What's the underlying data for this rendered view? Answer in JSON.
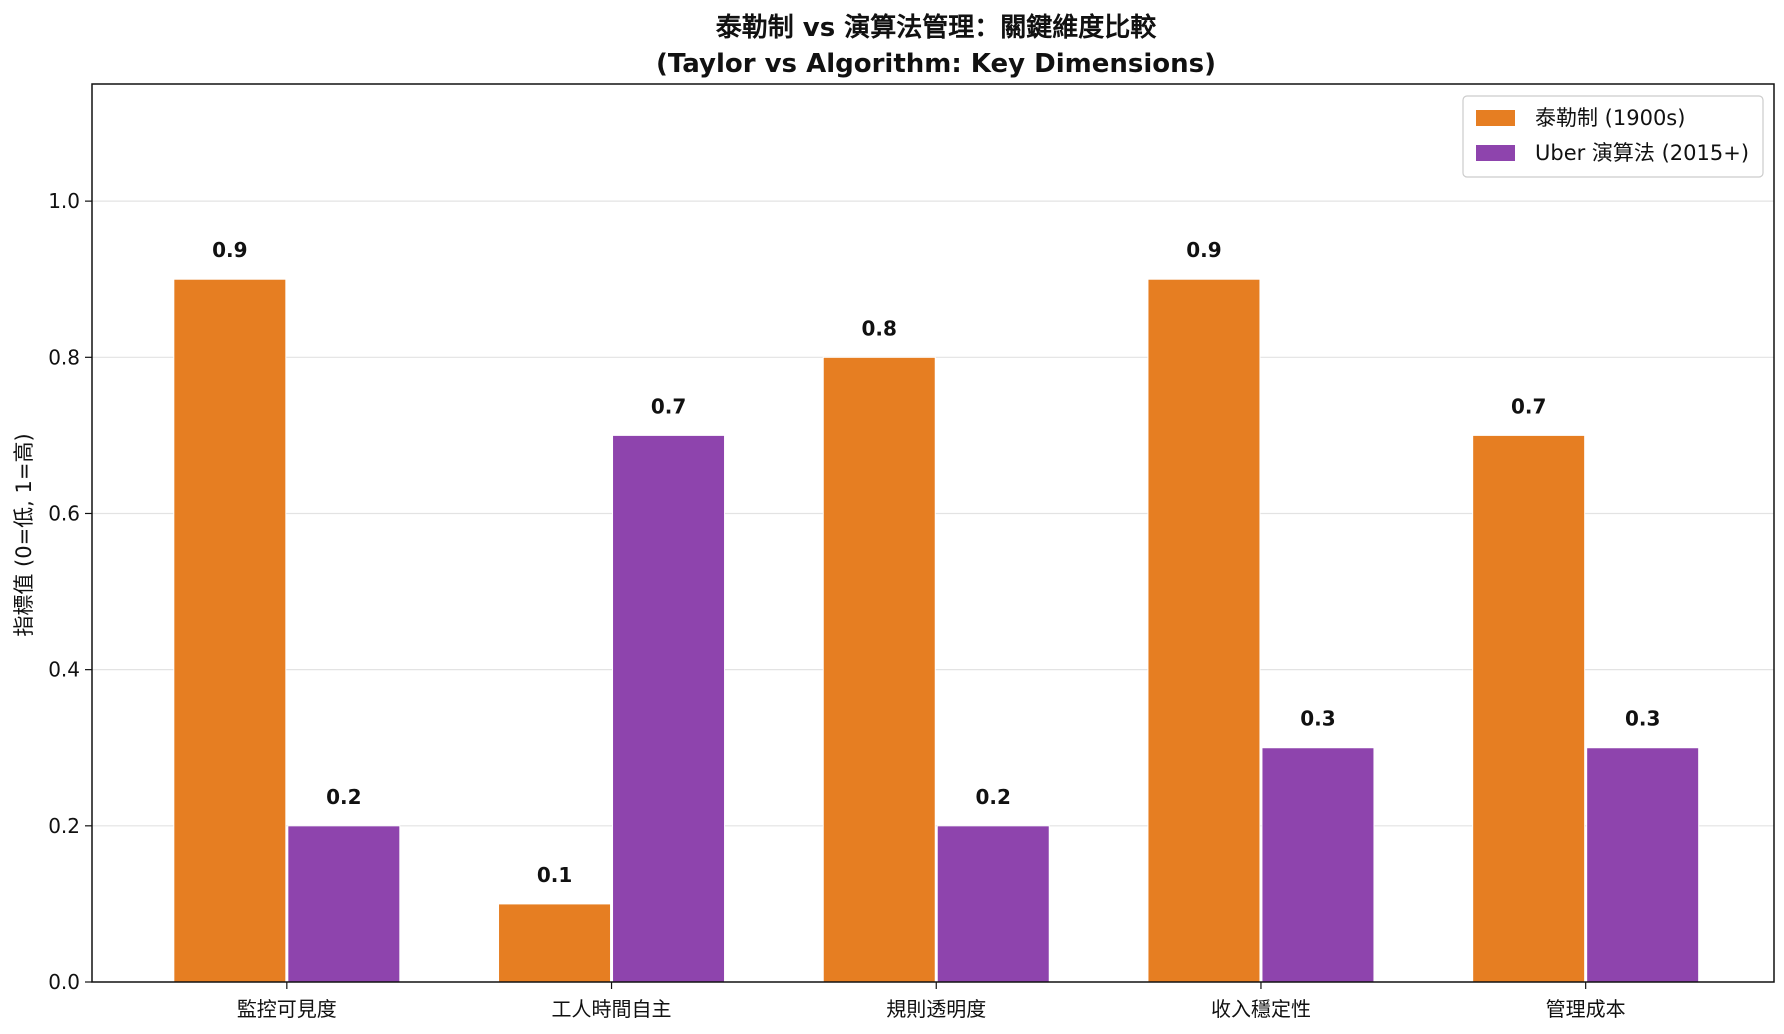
{
  "chart_data": {
    "type": "bar",
    "title_line1": "泰勒制 vs 演算法管理：關鍵維度比較",
    "title_line2": "(Taylor vs Algorithm: Key Dimensions)",
    "xlabel": "",
    "ylabel": "指標值 (0=低, 1=高)",
    "ylim": [
      0,
      1.15
    ],
    "yticks": [
      "0.0",
      "0.2",
      "0.4",
      "0.6",
      "0.8",
      "1.0"
    ],
    "grid": "horizontal",
    "legend_position": "top-right",
    "categories": [
      "監控可見度",
      "工人時間自主",
      "規則透明度",
      "收入穩定性",
      "管理成本"
    ],
    "series": [
      {
        "name": "泰勒制 (1900s)",
        "color": "#e67e22",
        "values": [
          0.9,
          0.1,
          0.8,
          0.9,
          0.7
        ],
        "labels": [
          "0.9",
          "0.1",
          "0.8",
          "0.9",
          "0.7"
        ]
      },
      {
        "name": "Uber 演算法 (2015+)",
        "color": "#8e44ad",
        "values": [
          0.2,
          0.7,
          0.2,
          0.3,
          0.3
        ],
        "labels": [
          "0.2",
          "0.7",
          "0.2",
          "0.3",
          "0.3"
        ]
      }
    ]
  }
}
